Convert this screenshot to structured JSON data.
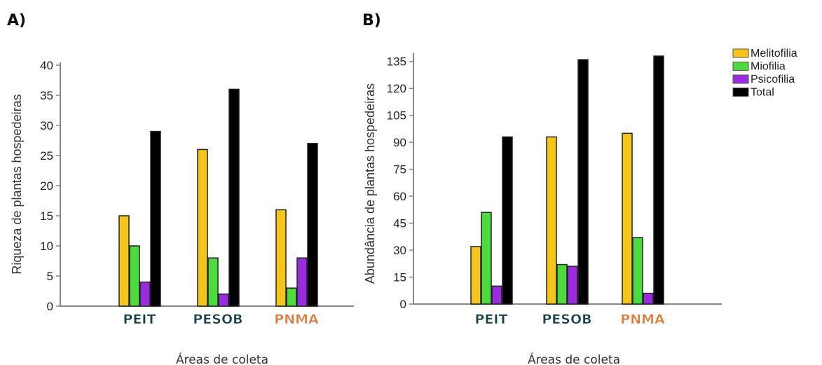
{
  "colors": {
    "Melitofilia": "#f5c518",
    "Miofilia": "#4cdb3c",
    "Psicofilia": "#9a2be2",
    "Total": "#000000",
    "PEIT": "#13424a",
    "PESOB": "#13424a",
    "PNMA": "#e07a3a"
  },
  "chart_data": [
    {
      "type": "bar",
      "panel_label": "A)",
      "categories": [
        "PEIT",
        "PESOB",
        "PNMA"
      ],
      "series": [
        {
          "name": "Melitofilia",
          "values": [
            15,
            26,
            16
          ]
        },
        {
          "name": "Miofilia",
          "values": [
            10,
            8,
            3
          ]
        },
        {
          "name": "Psicofilia",
          "values": [
            4,
            2,
            8
          ]
        },
        {
          "name": "Total",
          "values": [
            29,
            36,
            27
          ]
        }
      ],
      "ylabel": "Riqueza de plantas hospedeiras",
      "xlabel": "Áreas de coleta",
      "ylim": [
        0,
        40
      ],
      "yticks": [
        0,
        5,
        10,
        15,
        20,
        25,
        30,
        35,
        40
      ],
      "grid": false,
      "legend": "none"
    },
    {
      "type": "bar",
      "panel_label": "B)",
      "categories": [
        "PEIT",
        "PESOB",
        "PNMA"
      ],
      "series": [
        {
          "name": "Melitofilia",
          "values": [
            32,
            93,
            95
          ]
        },
        {
          "name": "Miofilia",
          "values": [
            51,
            22,
            37
          ]
        },
        {
          "name": "Psicofilia",
          "values": [
            10,
            21,
            6
          ]
        },
        {
          "name": "Total",
          "values": [
            93,
            136,
            138
          ]
        }
      ],
      "ylabel": "Abundância de plantas hospedeiras",
      "xlabel": "Áreas de coleta",
      "ylim": [
        0,
        138
      ],
      "yticks": [
        0,
        15,
        30,
        45,
        60,
        75,
        90,
        105,
        120,
        135
      ],
      "grid": false,
      "legend": "right"
    }
  ]
}
